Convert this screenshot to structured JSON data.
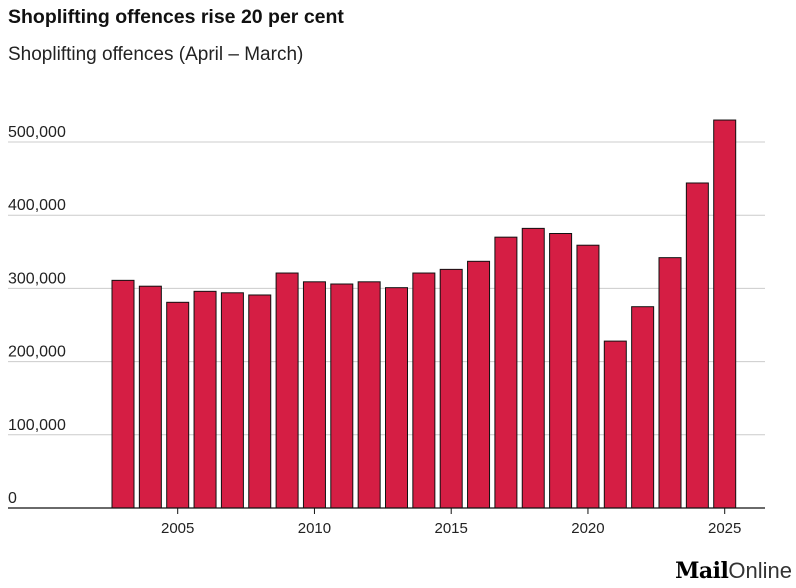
{
  "header": {
    "title": "Shoplifting offences rise 20 per cent",
    "subtitle": "Shoplifting offences (April – March)"
  },
  "logo": {
    "part1": "Mail",
    "part2": "Online"
  },
  "colors": {
    "bar": "#d51e44",
    "bar_stroke": "#111111",
    "grid": "#cccccc",
    "axis": "#111111"
  },
  "chart_data": {
    "type": "bar",
    "title": "Shoplifting offences rise 20 per cent",
    "subtitle": "Shoplifting offences (April – March)",
    "xlabel": "",
    "ylabel": "",
    "categories": [
      2003,
      2004,
      2005,
      2006,
      2007,
      2008,
      2009,
      2010,
      2011,
      2012,
      2013,
      2014,
      2015,
      2016,
      2017,
      2018,
      2019,
      2020,
      2021,
      2022,
      2023,
      2024,
      2025
    ],
    "values": [
      311000,
      303000,
      281000,
      296000,
      294000,
      291000,
      321000,
      309000,
      306000,
      309000,
      301000,
      321000,
      326000,
      337000,
      370000,
      382000,
      375000,
      359000,
      228000,
      275000,
      342000,
      444000,
      530000
    ],
    "ylim": [
      0,
      500000
    ],
    "yticks": [
      0,
      100000,
      200000,
      300000,
      400000,
      500000
    ],
    "ytick_labels": [
      "0",
      "100,000",
      "200,000",
      "300,000",
      "400,000",
      "500,000"
    ],
    "xticks": [
      2005,
      2010,
      2015,
      2020,
      2025
    ],
    "xtick_labels": [
      "2005",
      "2010",
      "2015",
      "2020",
      "2025"
    ],
    "grid": true,
    "legend": "none"
  }
}
